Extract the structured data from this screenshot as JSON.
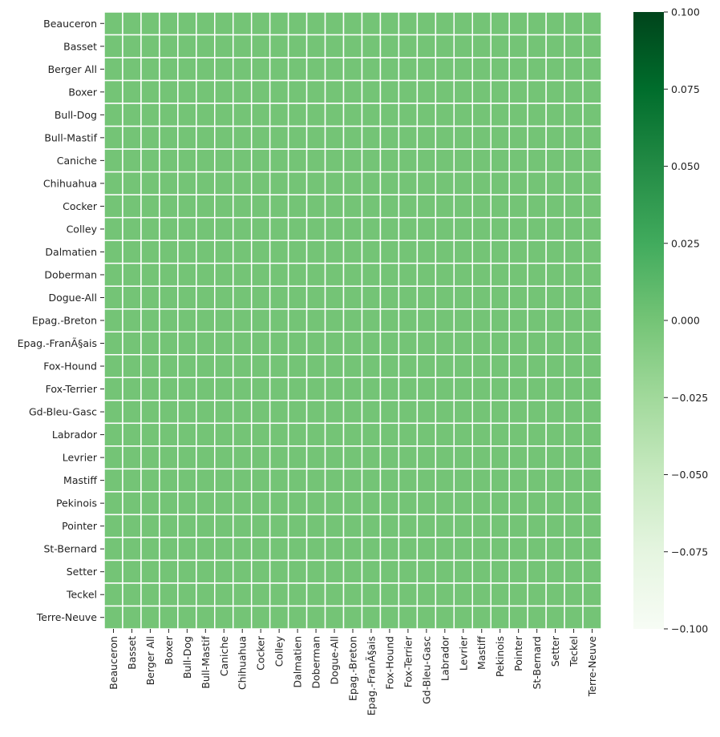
{
  "chart_data": {
    "type": "heatmap",
    "title": "",
    "xlabel": "",
    "ylabel": "",
    "rows": [
      "Beauceron",
      "Basset",
      "Berger All",
      "Boxer",
      "Bull-Dog",
      "Bull-Mastif",
      "Caniche",
      "Chihuahua",
      "Cocker",
      "Colley",
      "Dalmatien",
      "Doberman",
      "Dogue-All",
      "Epag.-Breton",
      "Epag.-FranÃ§ais",
      "Fox-Hound",
      "Fox-Terrier",
      "Gd-Bleu-Gasc",
      "Labrador",
      "Levrier",
      "Mastiff",
      "Pekinois",
      "Pointer",
      "St-Bernard",
      "Setter",
      "Teckel",
      "Terre-Neuve"
    ],
    "columns": [
      "Beauceron",
      "Basset",
      "Berger All",
      "Boxer",
      "Bull-Dog",
      "Bull-Mastif",
      "Caniche",
      "Chihuahua",
      "Cocker",
      "Colley",
      "Dalmatien",
      "Doberman",
      "Dogue-All",
      "Epag.-Breton",
      "Epag.-FranÃ§ais",
      "Fox-Hound",
      "Fox-Terrier",
      "Gd-Bleu-Gasc",
      "Labrador",
      "Levrier",
      "Mastiff",
      "Pekinois",
      "Pointer",
      "St-Bernard",
      "Setter",
      "Teckel",
      "Terre-Neuve"
    ],
    "values_description": "all cells equal",
    "cell_value": 0.0,
    "colormap": "Greens",
    "vmin": -0.1,
    "vmax": 0.1,
    "grid": true,
    "cell_border_color": "#ffffff",
    "colorbar": {
      "position": "right",
      "ticks": [
        0.1,
        0.075,
        0.05,
        0.025,
        0.0,
        -0.025,
        -0.05,
        -0.075,
        -0.1
      ],
      "tick_labels": [
        "0.100",
        "0.075",
        "0.050",
        "0.025",
        "0.000",
        "−0.025",
        "−0.050",
        "−0.075",
        "−0.100"
      ],
      "colors": [
        "#f7fcf5",
        "#e5f5e0",
        "#c7e9c0",
        "#a1d99b",
        "#74c476",
        "#41ab5d",
        "#238b45",
        "#006d2c",
        "#00441b"
      ]
    }
  }
}
